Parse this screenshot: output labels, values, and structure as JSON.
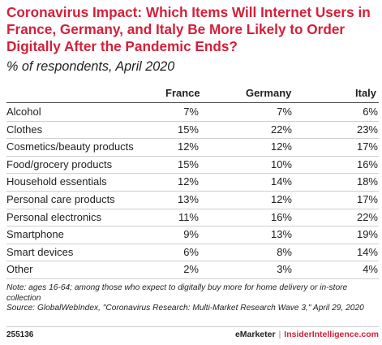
{
  "chart_data": {
    "type": "table",
    "title": "Coronavirus Impact: Which Items Will Internet Users in France, Germany, and Italy Be More Likely to Order Digitally After the Pandemic Ends?",
    "subtitle": "% of respondents, April 2020",
    "columns": [
      "France",
      "Germany",
      "Italy"
    ],
    "rows": [
      {
        "label": "Alcohol",
        "values": [
          "7%",
          "7%",
          "6%"
        ]
      },
      {
        "label": "Clothes",
        "values": [
          "15%",
          "22%",
          "23%"
        ]
      },
      {
        "label": "Cosmetics/beauty products",
        "values": [
          "12%",
          "12%",
          "17%"
        ]
      },
      {
        "label": "Food/grocery products",
        "values": [
          "15%",
          "10%",
          "16%"
        ]
      },
      {
        "label": "Household essentials",
        "values": [
          "12%",
          "14%",
          "18%"
        ]
      },
      {
        "label": "Personal care products",
        "values": [
          "13%",
          "12%",
          "17%"
        ]
      },
      {
        "label": "Personal electronics",
        "values": [
          "11%",
          "16%",
          "22%"
        ]
      },
      {
        "label": "Smartphone",
        "values": [
          "9%",
          "13%",
          "19%"
        ]
      },
      {
        "label": "Smart devices",
        "values": [
          "6%",
          "8%",
          "14%"
        ]
      },
      {
        "label": "Other",
        "values": [
          "2%",
          "3%",
          "4%"
        ]
      }
    ],
    "note": "Note: ages 16-64; among those who expect to digitally buy more for home delivery or in-store collection",
    "source": "Source: GlobalWebIndex, \"Coronavirus Research: Multi-Market Research Wave 3,\" April 29, 2020"
  },
  "footer": {
    "chart_id": "255136",
    "brand_left": "eMarketer",
    "separator": "|",
    "brand_right": "InsiderIntelligence.com"
  },
  "colors": {
    "title": "#d4203a",
    "text": "#222222",
    "rule": "#444444",
    "row_rule": "#cfcfcf"
  }
}
